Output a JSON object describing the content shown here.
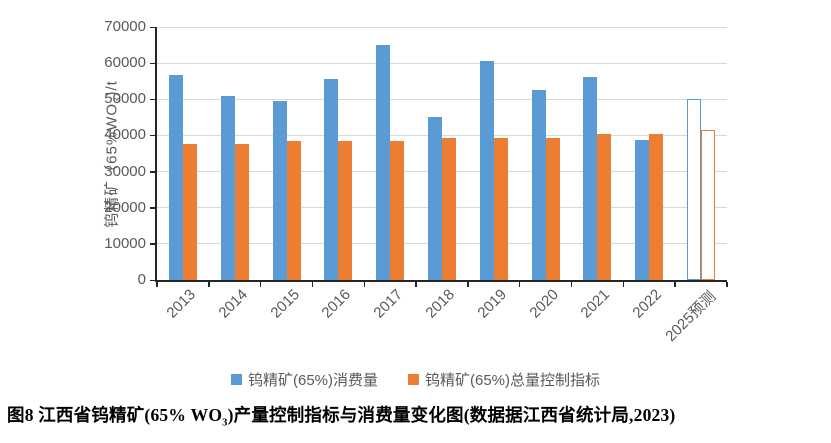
{
  "figure": {
    "caption": {
      "prefix": "图8  江西省钨精矿(65% WO",
      "sub": "3",
      "suffix": ")产量控制指标与消费量变化图(数据据江西省统计局,2023)"
    }
  },
  "chart_data": {
    "type": "bar",
    "title": "",
    "categories": [
      "2013",
      "2014",
      "2015",
      "2016",
      "2017",
      "2018",
      "2019",
      "2020",
      "2021",
      "2022",
      "2025预测"
    ],
    "series": [
      {
        "name": "钨精矿(65%)消费量",
        "color": "#5B9BD5",
        "values": [
          56800,
          51000,
          49500,
          55600,
          65000,
          45200,
          60700,
          52500,
          56300,
          38600,
          50000
        ]
      },
      {
        "name": "钨精矿(65%)总量控制指标",
        "color": "#ED7D31",
        "values": [
          37600,
          37600,
          38400,
          38400,
          38400,
          39400,
          39400,
          39400,
          40500,
          40500,
          41500
        ]
      }
    ],
    "hollow_flags": [
      false,
      false,
      false,
      false,
      false,
      false,
      false,
      false,
      false,
      false,
      true
    ],
    "xlabel": "",
    "ylabel": {
      "prefix": "钨精矿（65%WO",
      "sub": "3",
      "suffix": ")/t"
    },
    "ylim": [
      0,
      70000
    ],
    "ytick_step": 10000,
    "yticks": [
      0,
      10000,
      20000,
      30000,
      40000,
      50000,
      60000,
      70000
    ],
    "grid": true,
    "legend_position": "bottom",
    "colors": {
      "grid": "#d9d9d9",
      "axis": "#262626",
      "tick_text": "#595959"
    }
  }
}
